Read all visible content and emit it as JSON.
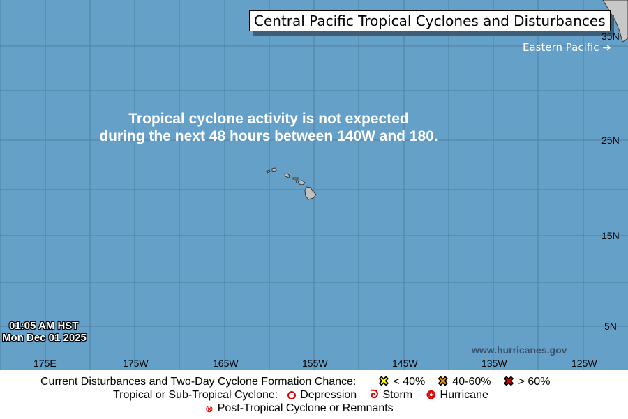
{
  "title": "Central Pacific Tropical Cyclones and Disturbances",
  "eastern_pacific_link": "Eastern Pacific",
  "outlook_message": [
    "Tropical cyclone activity is not expected",
    "during the next 48 hours between 140W and 180."
  ],
  "timestamp": {
    "time": "01:05 AM HST",
    "date": "Mon Dec 01 2025"
  },
  "source": "www.hurricanes.gov",
  "lon_labels": [
    "175E",
    "175W",
    "165W",
    "155W",
    "145W",
    "135W",
    "125W"
  ],
  "lat_labels": [
    "35N",
    "25N",
    "15N",
    "5N"
  ],
  "colors": {
    "ocean": "#64a0c8",
    "land": "#c0c0c0",
    "low": "#ffff00",
    "medium": "#ff9900",
    "high": "#e00000",
    "storm": "#e00000"
  },
  "legend": {
    "disturbances_label": "Current Disturbances and Two-Day Cyclone Formation Chance:",
    "low": "< 40%",
    "medium": "40-60%",
    "high": "> 60%",
    "cyclone_label": "Tropical or Sub-Tropical Cyclone:",
    "depression": "Depression",
    "storm": "Storm",
    "hurricane": "Hurricane",
    "post_tropical": "Post-Tropical Cyclone or Remnants"
  }
}
